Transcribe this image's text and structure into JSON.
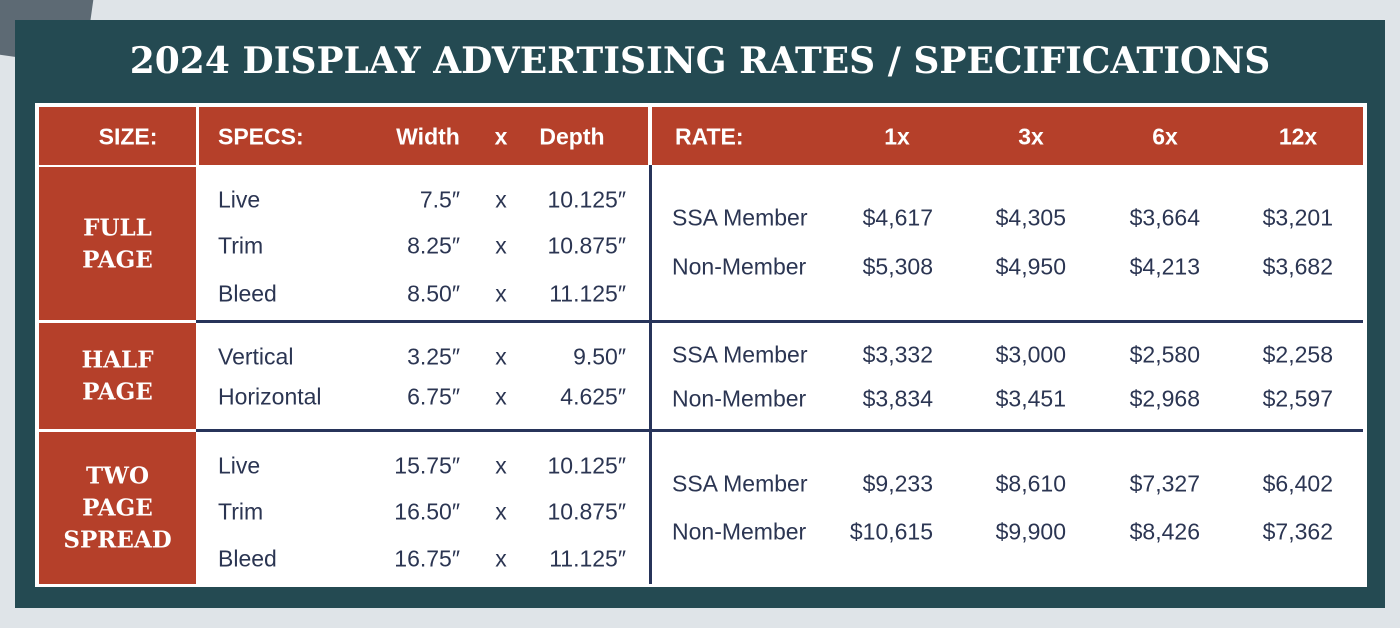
{
  "title": "2024 DISPLAY ADVERTISING RATES / SPECIFICATIONS",
  "table": {
    "header": [
      "SIZE:",
      "SPECS:",
      "Width",
      "x",
      "Depth",
      "RATE:",
      "1x",
      "3x",
      "6x",
      "12x"
    ],
    "rows": [
      {
        "size": [
          "FULL",
          "PAGE"
        ],
        "specs": [
          [
            "Live",
            "7.5″",
            "x",
            "10.125″"
          ],
          [
            "Trim",
            "8.25″",
            "x",
            "10.875″"
          ],
          [
            "Bleed",
            "8.50″",
            "x",
            "11.125″"
          ]
        ],
        "rates": [
          [
            "SSA Member",
            "$4,617",
            "$4,305",
            "$3,664",
            "$3,201"
          ],
          [
            "Non-Member",
            "$5,308",
            "$4,950",
            "$4,213",
            "$3,682"
          ]
        ]
      },
      {
        "size": [
          "HALF",
          "PAGE"
        ],
        "specs": [
          [
            "Vertical",
            "3.25″",
            "x",
            "9.50″"
          ],
          [
            "Horizontal",
            "6.75″",
            "x",
            "4.625″"
          ]
        ],
        "rates": [
          [
            "SSA Member",
            "$3,332",
            "$3,000",
            "$2,580",
            "$2,258"
          ],
          [
            "Non-Member",
            "$3,834",
            "$3,451",
            "$2,968",
            "$2,597"
          ]
        ]
      },
      {
        "size": [
          "TWO",
          "PAGE",
          "SPREAD"
        ],
        "specs": [
          [
            "Live",
            "15.75″",
            "x",
            "10.125″"
          ],
          [
            "Trim",
            "16.50″",
            "x",
            "10.875″"
          ],
          [
            "Bleed",
            "16.75″",
            "x",
            "11.125″"
          ]
        ],
        "rates": [
          [
            "SSA Member",
            "$9,233",
            "$8,610",
            "$7,327",
            "$6,402"
          ],
          [
            "Non-Member",
            "$10,615",
            "$9,900",
            "$8,426",
            "$7,362"
          ]
        ]
      }
    ]
  }
}
